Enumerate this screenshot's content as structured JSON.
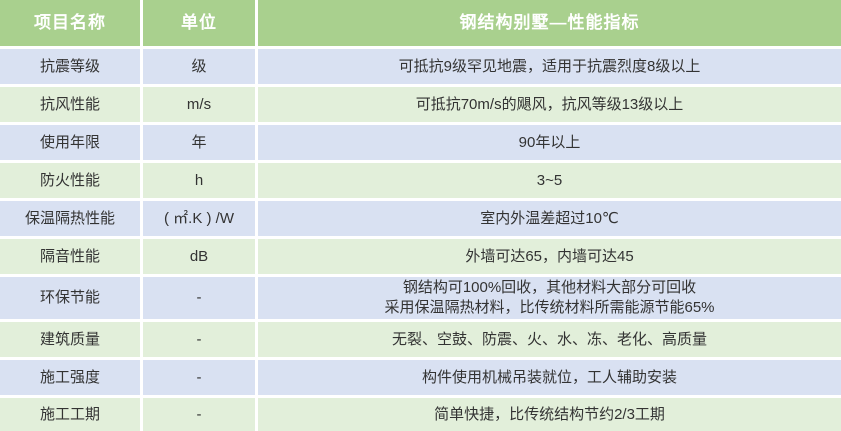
{
  "chart_data": {
    "type": "table",
    "title": "钢结构别墅—性能指标",
    "columns": [
      "项目名称",
      "单位",
      "钢结构别墅—性能指标"
    ],
    "rows": [
      [
        "抗震等级",
        "级",
        "可抵抗9级罕见地震，适用于抗震烈度8级以上"
      ],
      [
        "抗风性能",
        "m/s",
        "可抵抗70m/s的飓风，抗风等级13级以上"
      ],
      [
        "使用年限",
        "年",
        "90年以上"
      ],
      [
        "防火性能",
        "h",
        "3~5"
      ],
      [
        "保温隔热性能",
        "( ㎡.K ) /W",
        "室内外温差超过10℃"
      ],
      [
        "隔音性能",
        "dB",
        "外墙可达65，内墙可达45"
      ],
      [
        "环保节能",
        "-",
        "钢结构可100%回收，其他材料大部分可回收\n采用保温隔热材料，比传统材料所需能源节能65%"
      ],
      [
        "建筑质量",
        "-",
        "无裂、空鼓、防震、火、水、冻、老化、高质量"
      ],
      [
        "施工强度",
        "-",
        "构件使用机械吊装就位，工人辅助安装"
      ],
      [
        "施工工期",
        "-",
        "简单快捷，比传统结构节约2/3工期"
      ]
    ],
    "style": {
      "header_bg": "#a9d08e",
      "header_text": "#ffffff",
      "row_blue": "#d9e1f2",
      "row_green": "#e2efda",
      "body_text": "#333333"
    },
    "layout": {
      "stripe_order": [
        "blue",
        "green"
      ],
      "grid_gap_color": "#ffffff",
      "text_align": "center"
    }
  }
}
